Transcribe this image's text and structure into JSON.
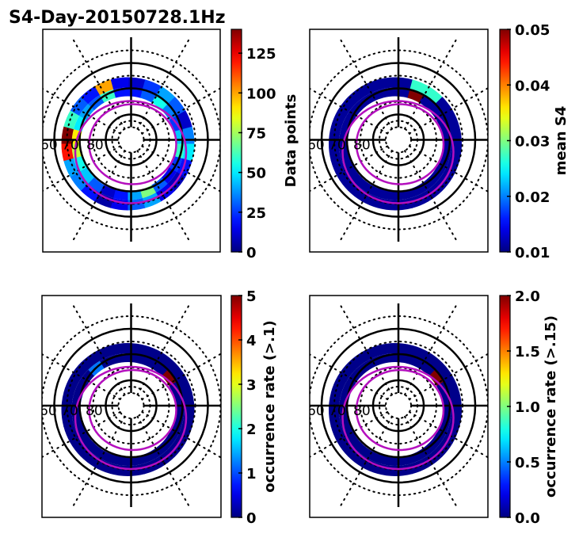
{
  "chart_data": [
    {
      "type": "heatmap",
      "subtype": "polar",
      "title": "S4-Day-20150728.1Hz",
      "colorbar_label": "Data points",
      "colorbar_ticks": [
        "0",
        "25",
        "50",
        "75",
        "100",
        "125"
      ],
      "colorbar_range": [
        0,
        140
      ],
      "colormap": "jet",
      "lat_labels": [
        "60",
        "70",
        "80"
      ],
      "cells": {
        "inner": [
          20,
          30,
          55,
          35,
          25,
          45,
          60,
          25,
          15,
          30,
          70,
          40,
          20,
          10,
          30,
          45,
          55,
          80,
          90,
          50,
          40,
          30,
          60,
          20
        ],
        "outer": [
          10,
          25,
          40,
          30,
          10,
          35,
          50,
          20,
          8,
          15,
          40,
          30,
          15,
          5,
          20,
          35,
          40,
          120,
          140,
          60,
          30,
          20,
          100,
          15
        ]
      }
    },
    {
      "type": "heatmap",
      "subtype": "polar",
      "title": "",
      "colorbar_label": "mean S4",
      "colorbar_ticks": [
        "0.01",
        "0.02",
        "0.03",
        "0.04",
        "0.05"
      ],
      "colorbar_range": [
        0.01,
        0.05
      ],
      "colormap": "jet",
      "lat_labels": [
        "60",
        "70",
        "80"
      ],
      "cells": {
        "inner": [
          0.011,
          0.05,
          0.011,
          0.011,
          0.011,
          0.011,
          0.011,
          0.011,
          0.011,
          0.011,
          0.011,
          0.011,
          0.011,
          0.011,
          0.011,
          0.011,
          0.011,
          0.011,
          0.011,
          0.011,
          0.011,
          0.011,
          0.011,
          0.011
        ],
        "outer": [
          0.011,
          0.027,
          0.027,
          0.011,
          0.011,
          0.011,
          0.011,
          0.011,
          0.011,
          0.011,
          0.011,
          0.011,
          0.011,
          0.011,
          0.011,
          0.011,
          0.011,
          0.011,
          0.011,
          0.011,
          0.011,
          0.011,
          0.011,
          0.011
        ]
      }
    },
    {
      "type": "heatmap",
      "subtype": "polar",
      "title": "",
      "colorbar_label": "occurrence rate (>.1)",
      "colorbar_ticks": [
        "0",
        "1",
        "2",
        "3",
        "4",
        "5"
      ],
      "colorbar_range": [
        0,
        5
      ],
      "colormap": "jet",
      "lat_labels": [
        "60",
        "70",
        "80"
      ],
      "cells": {
        "inner": [
          0.05,
          0.05,
          0.05,
          5,
          0.05,
          0.05,
          0.05,
          0.05,
          0.05,
          0.05,
          0.05,
          0.05,
          0.05,
          0.05,
          0.05,
          0.05,
          0.05,
          0.05,
          0.05,
          0.05,
          0.05,
          1.2,
          0.05,
          0.05
        ],
        "outer": [
          0.05,
          0.05,
          0.05,
          0.05,
          0.05,
          0.05,
          0.05,
          0.05,
          0.05,
          0.05,
          0.05,
          0.05,
          0.05,
          0.05,
          0.05,
          0.05,
          0.05,
          0.05,
          0.05,
          0.05,
          0.05,
          0.05,
          0.05,
          0.05
        ]
      }
    },
    {
      "type": "heatmap",
      "subtype": "polar",
      "title": "",
      "colorbar_label": "occurrence rate (>.15)",
      "colorbar_ticks": [
        "0.0",
        "0.5",
        "1.0",
        "1.5",
        "2.0"
      ],
      "colorbar_range": [
        0,
        2
      ],
      "colormap": "jet",
      "lat_labels": [
        "60",
        "70",
        "80"
      ],
      "cells": {
        "inner": [
          0.02,
          0.02,
          0.02,
          2,
          0.02,
          0.02,
          0.02,
          0.02,
          0.02,
          0.02,
          0.02,
          0.02,
          0.02,
          0.02,
          0.02,
          0.02,
          0.02,
          0.02,
          0.02,
          0.02,
          0.02,
          0.02,
          0.02,
          0.02
        ],
        "outer": [
          0.02,
          0.02,
          0.02,
          0.02,
          0.02,
          0.02,
          0.02,
          0.02,
          0.02,
          0.02,
          0.02,
          0.02,
          0.02,
          0.02,
          0.02,
          0.02,
          0.02,
          0.02,
          0.02,
          0.02,
          0.02,
          0.02,
          0.02,
          0.02
        ]
      }
    }
  ],
  "figure": {
    "title": "S4-Day-20150728.1Hz",
    "oval_color": "#b40fbe"
  }
}
